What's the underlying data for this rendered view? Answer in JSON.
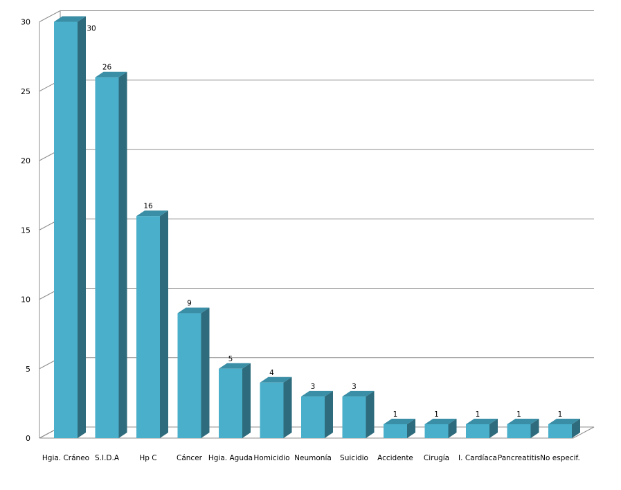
{
  "chart_data": {
    "type": "bar",
    "title": "",
    "xlabel": "",
    "ylabel": "",
    "ylim": [
      0,
      30
    ],
    "yticks": [
      0,
      5,
      10,
      15,
      20,
      25,
      30
    ],
    "grid": true,
    "legend": "none",
    "style": "3d",
    "categories": [
      "Hgia. Cráneo",
      "S.I.D.A",
      "Hp C",
      "Cáncer",
      "Hgia. Aguda",
      "Homicidio",
      "Neumonía",
      "Suicidio",
      "Accidente",
      "Cirugía",
      "I. Cardíaca",
      "Pancreatitis",
      "No especif."
    ],
    "values": [
      30,
      26,
      16,
      9,
      5,
      4,
      3,
      3,
      1,
      1,
      1,
      1,
      1
    ],
    "colors": {
      "front": "#4aafca",
      "top": "#3a8ea6",
      "side": "#2e6b7c",
      "grid": "#8c8c8c"
    }
  }
}
